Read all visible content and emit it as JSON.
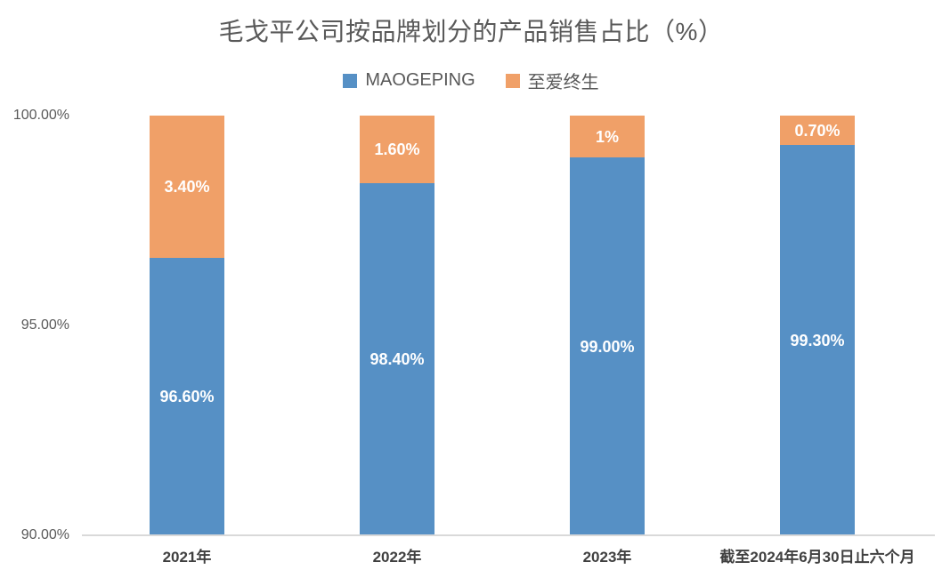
{
  "chart_data": {
    "type": "bar",
    "stacked": true,
    "title": "毛戈平公司按品牌划分的产品销售占比（%）",
    "categories": [
      "2021年",
      "2022年",
      "2023年",
      "截至2024年6月30日止六个月"
    ],
    "series": [
      {
        "name": "MAOGEPING",
        "color": "#5690C5",
        "values": [
          96.6,
          98.4,
          99.0,
          99.3
        ],
        "labels": [
          "96.60%",
          "98.40%",
          "99.00%",
          "99.30%"
        ]
      },
      {
        "name": "至爱终生",
        "color": "#F0A068",
        "values": [
          3.4,
          1.6,
          1.0,
          0.7
        ],
        "labels": [
          "3.40%",
          "1.60%",
          "1%",
          "0.70%"
        ]
      }
    ],
    "ylim": [
      90,
      100
    ],
    "yticks": [
      {
        "label": "100.00%",
        "value": 100
      },
      {
        "label": "95.00%",
        "value": 95
      },
      {
        "label": "90.00%",
        "value": 90
      }
    ],
    "xlabel": "",
    "ylabel": "",
    "legend_position": "top",
    "grid": false,
    "colors": {
      "title_text": "#595959",
      "axis_text": "#595959",
      "category_text": "#404040",
      "data_label_text": "#ffffff",
      "axis_line": "#d9d9d9"
    }
  }
}
